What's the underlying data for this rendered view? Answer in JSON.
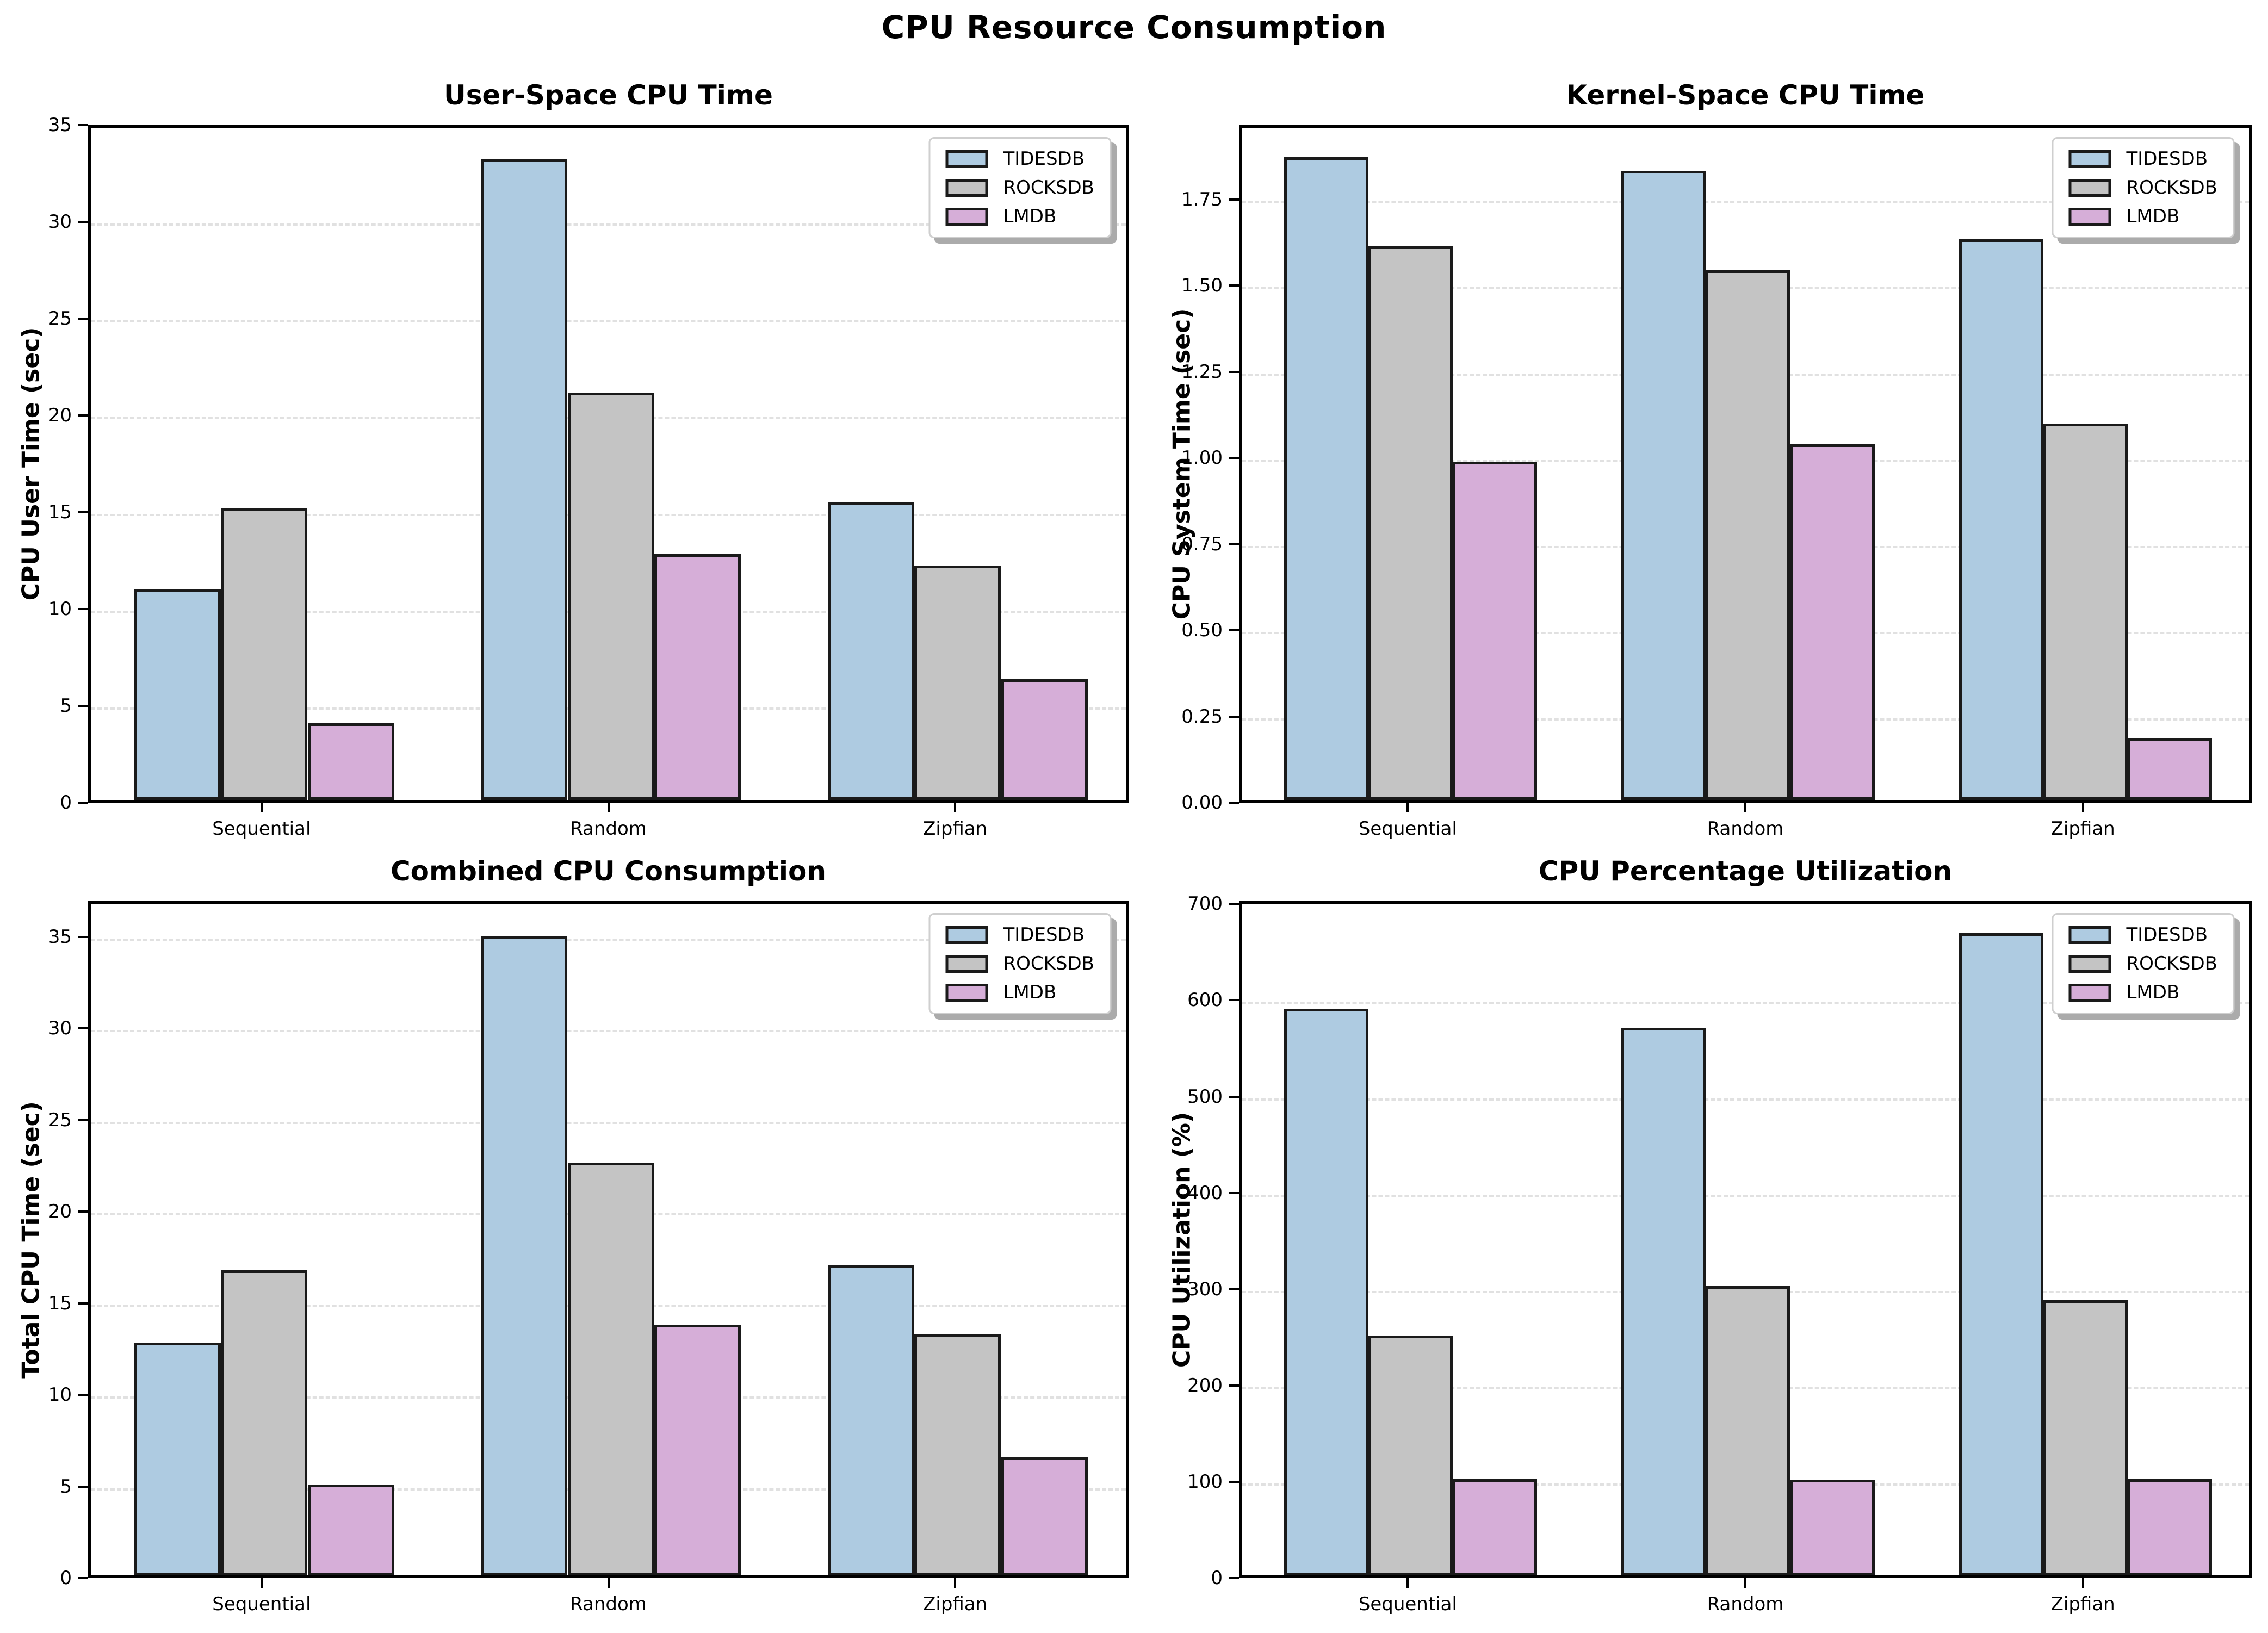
{
  "figure": {
    "title": "CPU Resource Consumption",
    "background": "#ffffff"
  },
  "palette": {
    "tidesdb": "#aecbe1",
    "rocksdb": "#c4c4c4",
    "lmdb": "#d6aed8",
    "bar_edge": "#1a1a1a",
    "gridline": "#e1e1e1",
    "legend_shadow": "#ababab"
  },
  "chart_data": [
    {
      "type": "bar",
      "id": "user-space-cpu-time",
      "title": "User-Space CPU Time",
      "xlabel": "",
      "ylabel": "CPU User Time (sec)",
      "categories": [
        "Sequential",
        "Random",
        "Zipfian"
      ],
      "series": [
        {
          "name": "TIDESDB",
          "color": "#aecbe1",
          "values": [
            11.0,
            33.4,
            15.5
          ]
        },
        {
          "name": "ROCKSDB",
          "color": "#c4c4c4",
          "values": [
            15.2,
            21.2,
            12.2
          ]
        },
        {
          "name": "LMDB",
          "color": "#d6aed8",
          "values": [
            4.0,
            12.8,
            6.3
          ]
        }
      ],
      "ylim": [
        0,
        35
      ],
      "ytick_labels": [
        "0",
        "5",
        "10",
        "15",
        "20",
        "25",
        "30",
        "35"
      ],
      "grid": "horizontal-dashed",
      "legend_position": "upper right"
    },
    {
      "type": "bar",
      "id": "kernel-space-cpu-time",
      "title": "Kernel-Space CPU Time",
      "xlabel": "",
      "ylabel": "CPU System Time (sec)",
      "categories": [
        "Sequential",
        "Random",
        "Zipfian"
      ],
      "series": [
        {
          "name": "TIDESDB",
          "color": "#aecbe1",
          "values": [
            1.88,
            1.84,
            1.64
          ]
        },
        {
          "name": "ROCKSDB",
          "color": "#c4c4c4",
          "values": [
            1.62,
            1.55,
            1.1
          ]
        },
        {
          "name": "LMDB",
          "color": "#d6aed8",
          "values": [
            0.99,
            1.04,
            0.18
          ]
        }
      ],
      "ylim": [
        0,
        1.966
      ],
      "ytick_labels": [
        "0.00",
        "0.25",
        "0.50",
        "0.75",
        "1.00",
        "1.25",
        "1.50",
        "1.75"
      ],
      "grid": "horizontal-dashed",
      "legend_position": "upper right"
    },
    {
      "type": "bar",
      "id": "combined-cpu-consumption",
      "title": "Combined CPU Consumption",
      "xlabel": "",
      "ylabel": "Total CPU Time (sec)",
      "categories": [
        "Sequential",
        "Random",
        "Zipfian"
      ],
      "series": [
        {
          "name": "TIDESDB",
          "color": "#aecbe1",
          "values": [
            12.8,
            35.2,
            17.1
          ]
        },
        {
          "name": "ROCKSDB",
          "color": "#c4c4c4",
          "values": [
            16.8,
            22.7,
            13.3
          ]
        },
        {
          "name": "LMDB",
          "color": "#d6aed8",
          "values": [
            5.0,
            13.8,
            6.5
          ]
        }
      ],
      "ylim": [
        0,
        36.96
      ],
      "ytick_labels": [
        "0",
        "5",
        "10",
        "15",
        "20",
        "25",
        "30",
        "35"
      ],
      "grid": "horizontal-dashed",
      "legend_position": "upper right"
    },
    {
      "type": "bar",
      "id": "cpu-percentage-utilization",
      "title": "CPU Percentage Utilization",
      "xlabel": "",
      "ylabel": "CPU Utilization (%)",
      "categories": [
        "Sequential",
        "Random",
        "Zipfian"
      ],
      "series": [
        {
          "name": "TIDESDB",
          "color": "#aecbe1",
          "values": [
            593,
            573,
            672
          ]
        },
        {
          "name": "ROCKSDB",
          "color": "#c4c4c4",
          "values": [
            251,
            303,
            288
          ]
        },
        {
          "name": "LMDB",
          "color": "#d6aed8",
          "values": [
            101,
            100,
            101
          ]
        }
      ],
      "ylim": [
        0,
        703
      ],
      "ytick_labels": [
        "0",
        "100",
        "200",
        "300",
        "400",
        "500",
        "600",
        "700"
      ],
      "grid": "horizontal-dashed",
      "legend_position": "upper right"
    }
  ]
}
